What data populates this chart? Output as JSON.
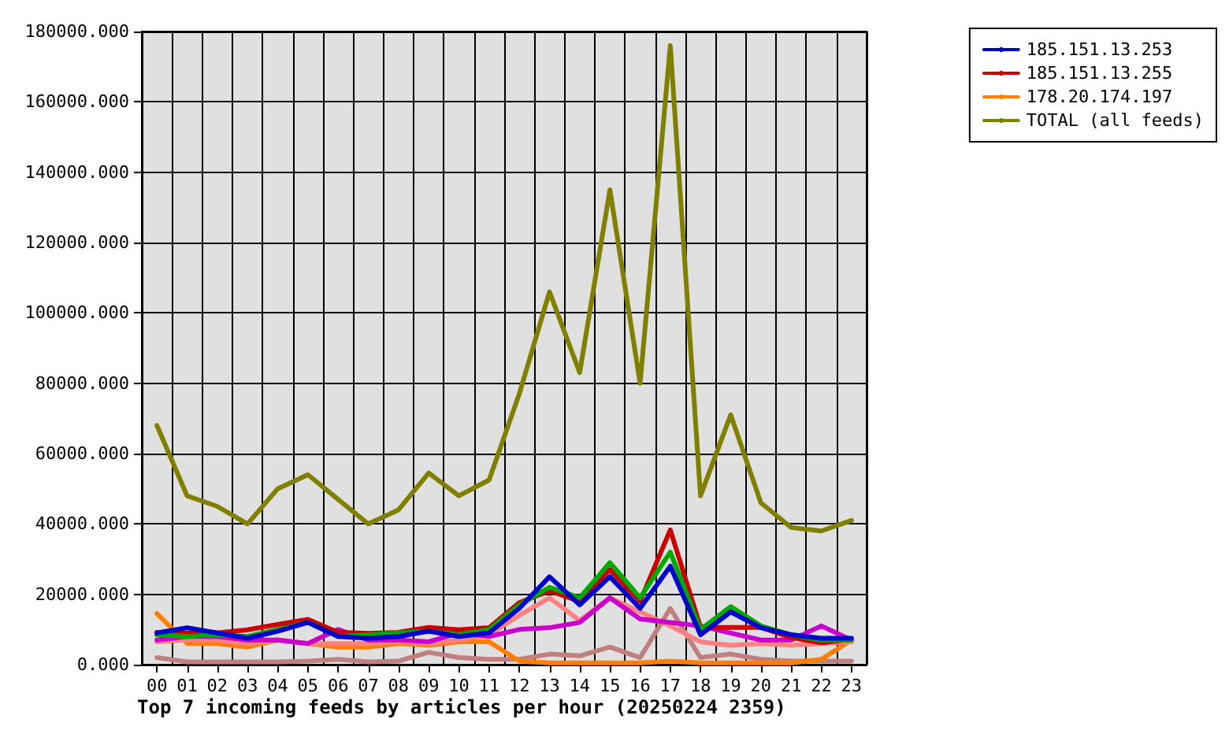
{
  "chart_data": {
    "type": "line",
    "title": "Top 7 incoming feeds by articles per hour (20250224 2359)",
    "categories": [
      "00",
      "01",
      "02",
      "03",
      "04",
      "05",
      "06",
      "07",
      "08",
      "09",
      "10",
      "11",
      "12",
      "13",
      "14",
      "15",
      "16",
      "17",
      "18",
      "19",
      "20",
      "21",
      "22",
      "23"
    ],
    "series": [
      {
        "name": "TOTAL (all feeds)",
        "color": "#808000",
        "values": [
          68000,
          48000,
          45000,
          40000,
          50000,
          54000,
          47000,
          40000,
          44000,
          54500,
          48000,
          52500,
          77000,
          106000,
          83000,
          135000,
          80000,
          176000,
          48000,
          71000,
          46000,
          39000,
          38000,
          41000
        ]
      },
      {
        "color": "#c08080",
        "values": [
          2000,
          800,
          800,
          800,
          800,
          1000,
          1500,
          800,
          1000,
          3500,
          2000,
          1500,
          1500,
          3000,
          2500,
          5000,
          2000,
          16000,
          2000,
          3000,
          1500,
          1000,
          1000,
          1000
        ]
      },
      {
        "name": "178.20.174.197",
        "color": "#ff8000",
        "values": [
          14500,
          6000,
          6000,
          5000,
          7000,
          6000,
          5000,
          5000,
          6000,
          5500,
          6500,
          6500,
          1000,
          500,
          500,
          500,
          500,
          1000,
          500,
          500,
          500,
          500,
          1500,
          7000
        ]
      },
      {
        "color": "#ff8080",
        "values": [
          6500,
          7000,
          7000,
          6000,
          7000,
          6000,
          6000,
          6000,
          6500,
          6000,
          7000,
          8500,
          14000,
          19000,
          12500,
          19000,
          15000,
          11000,
          6500,
          5500,
          6000,
          5500,
          6000,
          6500
        ]
      },
      {
        "color": "#cc00cc",
        "values": [
          7000,
          8000,
          8000,
          7000,
          7000,
          6000,
          10000,
          7000,
          7000,
          6500,
          9000,
          8000,
          10000,
          10500,
          12000,
          19000,
          13000,
          12000,
          11000,
          9000,
          7000,
          7000,
          11000,
          7000
        ]
      },
      {
        "name": "185.151.13.255",
        "color": "#cc0000",
        "values": [
          9200,
          9000,
          9000,
          9900,
          11400,
          12900,
          9200,
          8900,
          9200,
          10600,
          9900,
          10500,
          17600,
          21000,
          18000,
          27000,
          18000,
          38300,
          10600,
          null,
          10600,
          7700,
          6200,
          7200
        ]
      },
      {
        "color": "#00aa00",
        "values": [
          8500,
          8000,
          8500,
          8000,
          10000,
          12000,
          8000,
          8500,
          9000,
          9500,
          8500,
          10000,
          17000,
          22000,
          19000,
          29000,
          19000,
          32000,
          10000,
          16500,
          11000,
          8500,
          7000,
          7000
        ]
      },
      {
        "name": "185.151.13.253",
        "color": "#0000cc",
        "values": [
          9000,
          10500,
          9000,
          7500,
          9500,
          12000,
          8000,
          7500,
          8000,
          9500,
          8000,
          9000,
          16000,
          25000,
          17000,
          25000,
          16000,
          28000,
          8500,
          15000,
          10500,
          8500,
          7500,
          7500
        ]
      }
    ],
    "ylim": [
      0,
      180000
    ],
    "yticks": [
      {
        "value": 0,
        "label": "0.000"
      },
      {
        "value": 20000,
        "label": "20000.000"
      },
      {
        "value": 40000,
        "label": "40000.000"
      },
      {
        "value": 60000,
        "label": "60000.000"
      },
      {
        "value": 80000,
        "label": "80000.000"
      },
      {
        "value": 100000,
        "label": "100000.000"
      },
      {
        "value": 120000,
        "label": "120000.000"
      },
      {
        "value": 140000,
        "label": "140000.000"
      },
      {
        "value": 160000,
        "label": "160000.000"
      },
      {
        "value": 180000,
        "label": "180000.000"
      }
    ],
    "grid": true,
    "legend": "top right",
    "marker": "none",
    "line_style": "solid"
  }
}
